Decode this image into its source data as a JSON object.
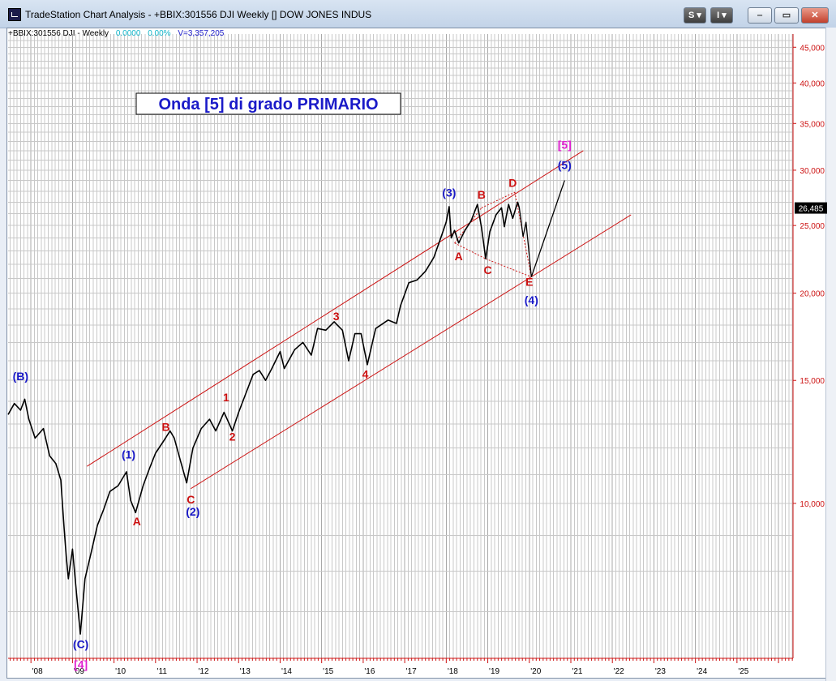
{
  "window": {
    "title": "TradeStation Chart Analysis - +BBIX:301556 DJI Weekly [] DOW JONES INDUS",
    "btn_s": "S",
    "btn_i": "I",
    "btn_min": "‒",
    "btn_max": "▭",
    "btn_close": "✕"
  },
  "header": {
    "symbol": "+BBIX:301556 DJI - Weekly",
    "change": "0.0000",
    "pct": "0.00%",
    "volume": "V=3,357,205"
  },
  "colors": {
    "red": "#cc1111",
    "blue": "#1a1ac8",
    "magenta": "#e020d0",
    "price": "#000000",
    "grid": "#c8c8c8"
  },
  "chart_data": {
    "type": "line",
    "title": "Onda [5] di grado PRIMARIO",
    "scale": "log",
    "ylim": [
      6000,
      47000
    ],
    "xlim": [
      2007.45,
      2026.35
    ],
    "y_ticks": [
      {
        "v": 10000,
        "label": "10,000"
      },
      {
        "v": 15000,
        "label": "15,000"
      },
      {
        "v": 20000,
        "label": "20,000"
      },
      {
        "v": 25000,
        "label": "25,000"
      },
      {
        "v": 30000,
        "label": "30,000"
      },
      {
        "v": 35000,
        "label": "35,000"
      },
      {
        "v": 40000,
        "label": "40,000"
      },
      {
        "v": 45000,
        "label": "45,000"
      }
    ],
    "x_ticks": [
      {
        "v": 2008,
        "label": "'08"
      },
      {
        "v": 2009,
        "label": "'09"
      },
      {
        "v": 2010,
        "label": "'10"
      },
      {
        "v": 2011,
        "label": "'11"
      },
      {
        "v": 2012,
        "label": "'12"
      },
      {
        "v": 2013,
        "label": "'13"
      },
      {
        "v": 2014,
        "label": "'14"
      },
      {
        "v": 2015,
        "label": "'15"
      },
      {
        "v": 2016,
        "label": "'16"
      },
      {
        "v": 2017,
        "label": "'17"
      },
      {
        "v": 2018,
        "label": "'18"
      },
      {
        "v": 2019,
        "label": "'19"
      },
      {
        "v": 2020,
        "label": "'20"
      },
      {
        "v": 2021,
        "label": "'21"
      },
      {
        "v": 2022,
        "label": "'22"
      },
      {
        "v": 2023,
        "label": "'23"
      },
      {
        "v": 2024,
        "label": "'24"
      },
      {
        "v": 2025,
        "label": "'25"
      }
    ],
    "last_price": {
      "v": 26485,
      "label": "26,485"
    },
    "price_series": [
      [
        2007.45,
        13400
      ],
      [
        2007.6,
        13900
      ],
      [
        2007.75,
        13600
      ],
      [
        2007.85,
        14100
      ],
      [
        2007.95,
        13200
      ],
      [
        2008.1,
        12400
      ],
      [
        2008.3,
        12800
      ],
      [
        2008.45,
        11700
      ],
      [
        2008.6,
        11400
      ],
      [
        2008.72,
        10800
      ],
      [
        2008.8,
        9200
      ],
      [
        2008.85,
        8400
      ],
      [
        2008.9,
        7800
      ],
      [
        2009.0,
        8600
      ],
      [
        2009.1,
        7400
      ],
      [
        2009.19,
        6500
      ],
      [
        2009.3,
        7800
      ],
      [
        2009.45,
        8500
      ],
      [
        2009.6,
        9300
      ],
      [
        2009.75,
        9800
      ],
      [
        2009.9,
        10400
      ],
      [
        2010.1,
        10600
      ],
      [
        2010.3,
        11100
      ],
      [
        2010.4,
        10100
      ],
      [
        2010.52,
        9700
      ],
      [
        2010.7,
        10600
      ],
      [
        2010.85,
        11200
      ],
      [
        2011.0,
        11800
      ],
      [
        2011.2,
        12300
      ],
      [
        2011.35,
        12700
      ],
      [
        2011.45,
        12400
      ],
      [
        2011.6,
        11500
      ],
      [
        2011.75,
        10700
      ],
      [
        2011.9,
        12000
      ],
      [
        2012.1,
        12800
      ],
      [
        2012.3,
        13200
      ],
      [
        2012.45,
        12700
      ],
      [
        2012.65,
        13500
      ],
      [
        2012.85,
        12700
      ],
      [
        2013.0,
        13500
      ],
      [
        2013.2,
        14500
      ],
      [
        2013.35,
        15300
      ],
      [
        2013.5,
        15500
      ],
      [
        2013.65,
        15000
      ],
      [
        2013.8,
        15600
      ],
      [
        2014.0,
        16500
      ],
      [
        2014.1,
        15600
      ],
      [
        2014.35,
        16600
      ],
      [
        2014.55,
        17000
      ],
      [
        2014.75,
        16300
      ],
      [
        2014.9,
        17800
      ],
      [
        2015.1,
        17700
      ],
      [
        2015.3,
        18200
      ],
      [
        2015.5,
        17700
      ],
      [
        2015.65,
        16000
      ],
      [
        2015.8,
        17500
      ],
      [
        2015.95,
        17500
      ],
      [
        2016.1,
        15800
      ],
      [
        2016.3,
        17800
      ],
      [
        2016.6,
        18300
      ],
      [
        2016.8,
        18100
      ],
      [
        2016.9,
        19200
      ],
      [
        2017.1,
        20700
      ],
      [
        2017.3,
        20900
      ],
      [
        2017.5,
        21500
      ],
      [
        2017.7,
        22500
      ],
      [
        2017.9,
        24300
      ],
      [
        2018.0,
        25300
      ],
      [
        2018.07,
        26600
      ],
      [
        2018.12,
        24000
      ],
      [
        2018.2,
        24600
      ],
      [
        2018.3,
        23600
      ],
      [
        2018.45,
        24600
      ],
      [
        2018.6,
        25400
      ],
      [
        2018.75,
        26800
      ],
      [
        2018.85,
        24800
      ],
      [
        2018.95,
        22400
      ],
      [
        2019.05,
        24500
      ],
      [
        2019.2,
        25900
      ],
      [
        2019.33,
        26500
      ],
      [
        2019.4,
        24900
      ],
      [
        2019.5,
        26800
      ],
      [
        2019.6,
        25600
      ],
      [
        2019.72,
        27000
      ],
      [
        2019.76,
        26485
      ]
    ],
    "projection": [
      [
        2019.76,
        26485
      ],
      [
        2019.85,
        24100
      ],
      [
        2019.92,
        25300
      ],
      [
        2020.05,
        21100
      ],
      [
        2020.85,
        29000
      ]
    ],
    "channel_lines": [
      {
        "pts": [
          [
            2009.35,
            11300
          ],
          [
            2021.3,
            32000
          ]
        ],
        "color": "#cc1111"
      },
      {
        "pts": [
          [
            2011.85,
            10500
          ],
          [
            2022.45,
            25900
          ]
        ],
        "color": "#cc1111"
      }
    ],
    "triangle_lines": [
      {
        "pts": [
          [
            2018.2,
            23600
          ],
          [
            2018.85,
            26500
          ]
        ]
      },
      {
        "pts": [
          [
            2018.85,
            26500
          ],
          [
            2019.65,
            27900
          ]
        ]
      },
      {
        "pts": [
          [
            2018.2,
            23600
          ],
          [
            2018.95,
            22400
          ]
        ]
      },
      {
        "pts": [
          [
            2018.95,
            22400
          ],
          [
            2020.05,
            21100
          ]
        ]
      },
      {
        "pts": [
          [
            2019.65,
            27900
          ],
          [
            2020.05,
            21100
          ]
        ]
      }
    ],
    "wave_labels": [
      {
        "text": "(B)",
        "x": 2007.75,
        "y": 15000,
        "color": "blue"
      },
      {
        "text": "(C)",
        "x": 2009.2,
        "y": 6200,
        "color": "blue"
      },
      {
        "text": "[4]",
        "x": 2009.2,
        "y": 5800,
        "color": "magenta"
      },
      {
        "text": "(1)",
        "x": 2010.35,
        "y": 11600,
        "color": "blue"
      },
      {
        "text": "A",
        "x": 2010.55,
        "y": 9300,
        "color": "red"
      },
      {
        "text": "B",
        "x": 2011.25,
        "y": 12700,
        "color": "red"
      },
      {
        "text": "C",
        "x": 2011.85,
        "y": 10000,
        "color": "red"
      },
      {
        "text": "(2)",
        "x": 2011.9,
        "y": 9600,
        "color": "blue"
      },
      {
        "text": "1",
        "x": 2012.7,
        "y": 14000,
        "color": "red"
      },
      {
        "text": "2",
        "x": 2012.85,
        "y": 12300,
        "color": "red"
      },
      {
        "text": "3",
        "x": 2015.35,
        "y": 18300,
        "color": "red"
      },
      {
        "text": "4",
        "x": 2016.05,
        "y": 15100,
        "color": "red"
      },
      {
        "text": "(3)",
        "x": 2018.07,
        "y": 27500,
        "color": "blue"
      },
      {
        "text": "A",
        "x": 2018.3,
        "y": 22300,
        "color": "red"
      },
      {
        "text": "B",
        "x": 2018.85,
        "y": 27300,
        "color": "red"
      },
      {
        "text": "C",
        "x": 2019.0,
        "y": 21300,
        "color": "red"
      },
      {
        "text": "D",
        "x": 2019.6,
        "y": 28400,
        "color": "red"
      },
      {
        "text": "E",
        "x": 2020.0,
        "y": 20500,
        "color": "red"
      },
      {
        "text": "(4)",
        "x": 2020.05,
        "y": 19300,
        "color": "blue"
      },
      {
        "text": "[5]",
        "x": 2020.85,
        "y": 32200,
        "color": "magenta"
      },
      {
        "text": "(5)",
        "x": 2020.85,
        "y": 30100,
        "color": "blue"
      }
    ]
  }
}
